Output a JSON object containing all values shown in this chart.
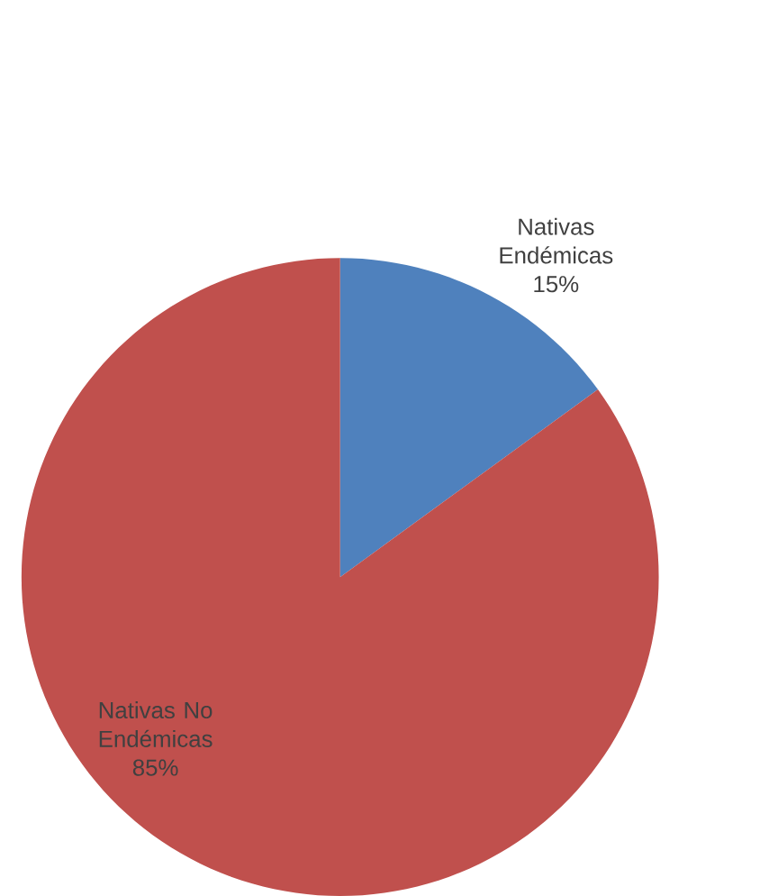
{
  "chart_data": {
    "type": "pie",
    "categories": [
      "Nativas Endémicas",
      "Nativas No Endémicas"
    ],
    "values": [
      15,
      85
    ],
    "colors": [
      "#4f81bd",
      "#c0504d"
    ],
    "value_labels": [
      "15%",
      "85%"
    ]
  }
}
